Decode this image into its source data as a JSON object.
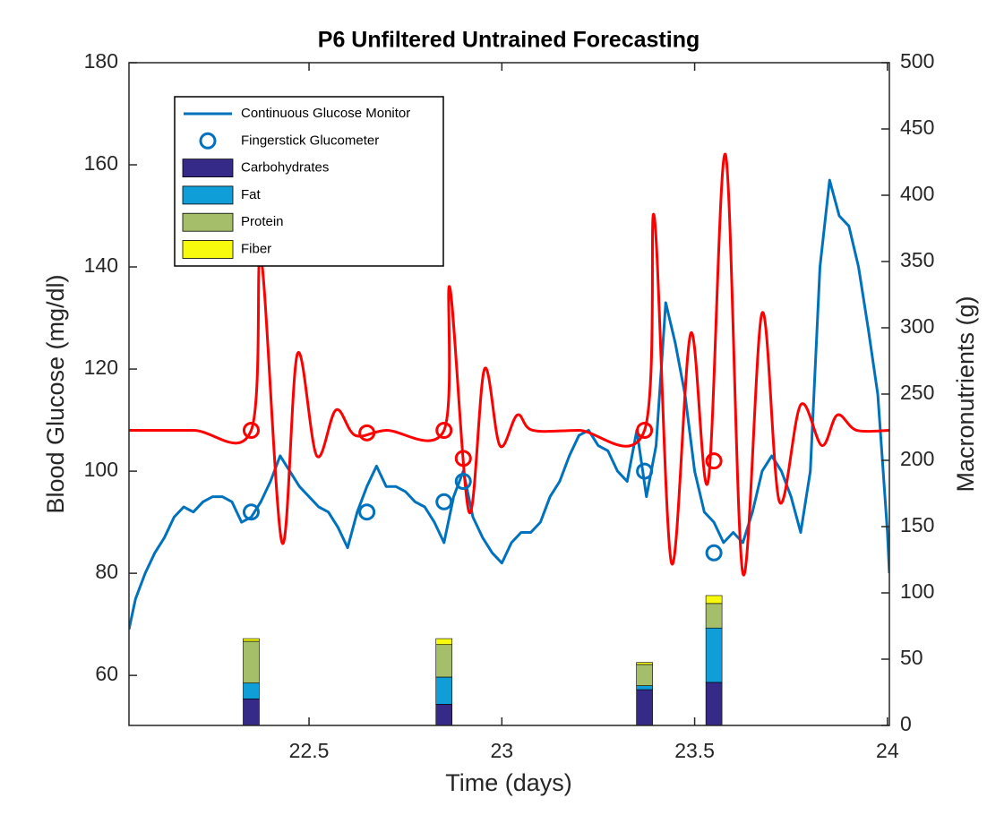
{
  "chart_data": {
    "type": "line",
    "title": "P6 Unfiltered Untrained Forecasting",
    "xlabel": "Time (days)",
    "ylabel": "Blood Glucose (mg/dl)",
    "y2label": "Macronutrients (g)",
    "xlim": [
      22.033,
      24.005
    ],
    "ylim": [
      50.2,
      180
    ],
    "y2lim": [
      0,
      500
    ],
    "xticks": [
      22.5,
      23,
      23.5,
      24
    ],
    "yticks": [
      60,
      80,
      100,
      120,
      140,
      160,
      180
    ],
    "y2ticks": [
      0,
      50,
      100,
      150,
      200,
      250,
      300,
      350,
      400,
      450,
      500
    ],
    "legend": "upper left",
    "series": [
      {
        "name": "Continuous Glucose Monitor",
        "type": "line",
        "color": "#0072bd",
        "x": [
          22.033,
          22.05,
          22.075,
          22.1,
          22.125,
          22.15,
          22.175,
          22.2,
          22.225,
          22.25,
          22.275,
          22.3,
          22.325,
          22.35,
          22.375,
          22.4,
          22.425,
          22.45,
          22.475,
          22.5,
          22.525,
          22.55,
          22.575,
          22.6,
          22.625,
          22.65,
          22.675,
          22.7,
          22.725,
          22.75,
          22.775,
          22.8,
          22.825,
          22.85,
          22.875,
          22.9,
          22.925,
          22.95,
          22.975,
          23.0,
          23.025,
          23.05,
          23.075,
          23.1,
          23.125,
          23.15,
          23.175,
          23.2,
          23.225,
          23.25,
          23.275,
          23.3,
          23.325,
          23.35,
          23.375,
          23.4,
          23.425,
          23.45,
          23.475,
          23.5,
          23.525,
          23.55,
          23.575,
          23.6,
          23.625,
          23.65,
          23.675,
          23.7,
          23.725,
          23.75,
          23.775,
          23.8,
          23.825,
          23.85,
          23.875,
          23.9,
          23.925,
          23.95,
          23.975,
          24.0,
          24.005
        ],
        "values": [
          69,
          75,
          80,
          84,
          87,
          91,
          93,
          92,
          94,
          95,
          95,
          94,
          90,
          91,
          94,
          98,
          103,
          100,
          97,
          95,
          93,
          92,
          89,
          85,
          92,
          97,
          101,
          97,
          97,
          96,
          94,
          93,
          90,
          86,
          95,
          100,
          91,
          87,
          84,
          82,
          86,
          88,
          88,
          90,
          95,
          98,
          103,
          107,
          108,
          105,
          104,
          100,
          98,
          108,
          95,
          105,
          133,
          125,
          115,
          100,
          92,
          90,
          86,
          88,
          86,
          92,
          100,
          103,
          100,
          95,
          88,
          100,
          140,
          157,
          150,
          148,
          140,
          128,
          115,
          88,
          80
        ]
      },
      {
        "type": "line",
        "color": "#ff0000",
        "x": [
          22.033,
          22.2,
          22.35,
          22.375,
          22.43,
          22.47,
          22.52,
          22.57,
          22.62,
          22.7,
          22.85,
          22.865,
          22.915,
          22.955,
          22.995,
          23.04,
          23.08,
          23.2,
          23.37,
          23.395,
          23.44,
          23.49,
          23.535,
          23.58,
          23.625,
          23.675,
          23.72,
          23.775,
          23.83,
          23.87,
          23.92,
          24.005
        ],
        "values": [
          108,
          108,
          108,
          142,
          86,
          123,
          103,
          112,
          107,
          108,
          108,
          136,
          92,
          120,
          105,
          111,
          108,
          108,
          108,
          150,
          82,
          127,
          98,
          162,
          80,
          131,
          94,
          113,
          105,
          111,
          108,
          108
        ]
      },
      {
        "name": "Fingerstick Glucometer",
        "type": "scatter",
        "color": "#0072bd",
        "x": [
          22.35,
          22.65,
          22.85,
          22.9,
          23.37,
          23.55
        ],
        "values": [
          92,
          92,
          94,
          98,
          100,
          84
        ]
      },
      {
        "type": "scatter",
        "color": "#ff0000",
        "x": [
          22.35,
          22.65,
          22.85,
          22.9,
          23.37,
          23.55
        ],
        "values": [
          108,
          107.5,
          108,
          102.5,
          108,
          102
        ]
      },
      {
        "name": "Carbohydrates",
        "type": "bar",
        "axis": "y2",
        "color": "#352a87",
        "x": [
          22.35,
          22.85,
          23.37,
          23.55
        ],
        "values": [
          20,
          16,
          27,
          32.5
        ]
      },
      {
        "name": "Fat",
        "type": "bar",
        "axis": "y2",
        "color": "#0f9ed8",
        "x": [
          22.35,
          22.85,
          23.37,
          23.55
        ],
        "values": [
          12,
          20.5,
          3,
          41
        ]
      },
      {
        "name": "Protein",
        "type": "bar",
        "axis": "y2",
        "color": "#a5be6a",
        "x": [
          22.35,
          22.85,
          23.37,
          23.55
        ],
        "values": [
          31.5,
          24.5,
          16,
          18.5
        ]
      },
      {
        "name": "Fiber",
        "type": "bar",
        "axis": "y2",
        "color": "#f8fa0d",
        "x": [
          22.35,
          22.85,
          23.37,
          23.55
        ],
        "values": [
          2,
          4.5,
          1.5,
          6
        ]
      }
    ]
  }
}
